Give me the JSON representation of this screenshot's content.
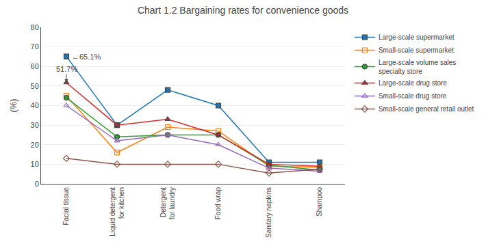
{
  "chart_data": {
    "type": "line",
    "title": "Chart 1.2 Bargaining rates for convenience goods",
    "ylabel": "(%)",
    "categories": [
      "Facial tissue",
      "Liquid detergent\nfor kitchen",
      "Detergent\nfor laundry",
      "Food wrap",
      "Sanitary napkins",
      "Shampoo"
    ],
    "ylim": [
      0,
      80
    ],
    "yticks": [
      0,
      10,
      20,
      30,
      40,
      50,
      60,
      70,
      80
    ],
    "grid": "y",
    "legend": "upper right",
    "line_style": "solid",
    "series": [
      {
        "name": "Large-scale supermarket",
        "marker": "square",
        "values": [
          65.1,
          30.0,
          48.0,
          40.0,
          11.0,
          11.0
        ]
      },
      {
        "name": "Small-scale supermarket",
        "marker": "square-open",
        "values": [
          45.0,
          16.0,
          29.0,
          27.0,
          9.0,
          8.5
        ]
      },
      {
        "name": "Large-scale volume sales\nspecialty store",
        "marker": "circle",
        "values": [
          44.0,
          24.0,
          25.0,
          25.0,
          9.5,
          7.0
        ]
      },
      {
        "name": "Large-scale drug store",
        "marker": "triangle-up",
        "values": [
          51.7,
          30.0,
          33.0,
          25.0,
          10.0,
          9.0
        ]
      },
      {
        "name": "Small-scale drug store",
        "marker": "triangle-up-open",
        "values": [
          40.0,
          22.0,
          25.0,
          20.0,
          8.0,
          6.5
        ]
      },
      {
        "name": "Small-scale general retail outlet",
        "marker": "diamond-open",
        "values": [
          13.0,
          10.0,
          10.0,
          10.0,
          5.5,
          7.5
        ]
      }
    ],
    "annotations": [
      {
        "text": "←65.1%",
        "x": "Facial tissue",
        "y": 65.1
      },
      {
        "text": "51.7%",
        "x": "Facial tissue",
        "y": 51.7,
        "arrow": true
      }
    ]
  }
}
